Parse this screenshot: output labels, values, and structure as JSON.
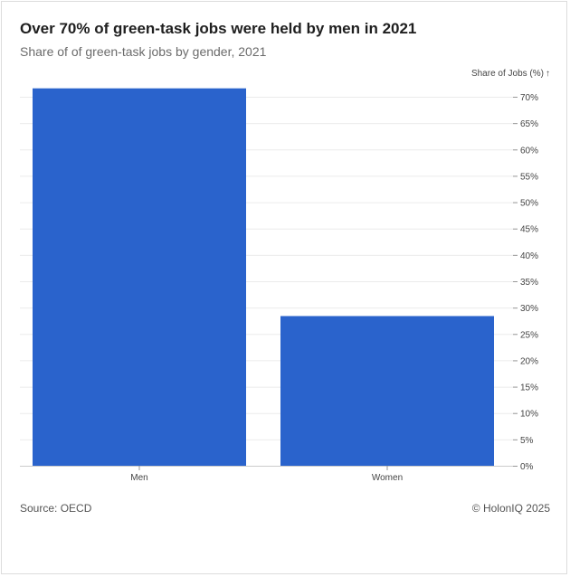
{
  "title": "Over 70% of green-task jobs were held by men in 2021",
  "subtitle": "Share of of green-task jobs by gender, 2021",
  "footer": {
    "source": "Source: OECD",
    "credit": "© HolonIQ 2025"
  },
  "colors": {
    "bar": "#2a63cc",
    "grid": "#ebebeb",
    "axis": "#cccccc"
  },
  "chart_data": {
    "type": "bar",
    "categories": [
      "Men",
      "Women"
    ],
    "values": [
      71.6,
      28.4
    ],
    "title": "Over 70% of green-task jobs were held by men in 2021",
    "xlabel": "",
    "ylabel": "Share of Jobs (%)",
    "ylim": [
      0,
      70
    ],
    "y_ticks": [
      0,
      5,
      10,
      15,
      20,
      25,
      30,
      35,
      40,
      45,
      50,
      55,
      60,
      65,
      70
    ],
    "tick_suffix": "%",
    "y_axis_position": "right",
    "grid": true,
    "legend": "none"
  }
}
